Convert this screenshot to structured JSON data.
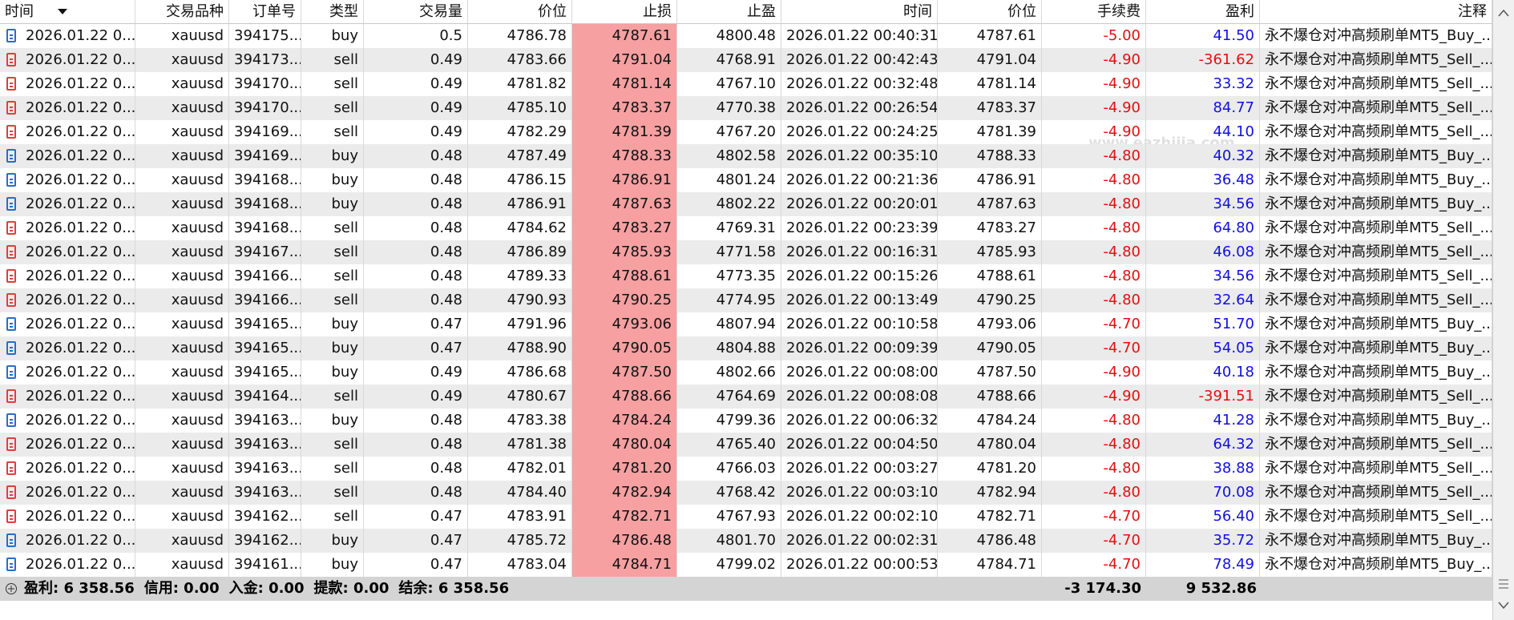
{
  "table": {
    "columns": [
      "时间",
      "交易品种",
      "订单号",
      "类型",
      "交易量",
      "价位",
      "止损",
      "止盈",
      "时间",
      "价位",
      "手续费",
      "盈利",
      "注释"
    ],
    "rows": [
      [
        "2026.01.22 0...",
        "xauusd",
        "394175...",
        "buy",
        "0.5",
        "4786.78",
        "4787.61",
        "4800.48",
        "2026.01.22 00:40:31",
        "4787.61",
        "-5.00",
        "41.50",
        "永不爆仓对冲高频刷单MT5_Buy_..."
      ],
      [
        "2026.01.22 0...",
        "xauusd",
        "394173...",
        "sell",
        "0.49",
        "4783.66",
        "4791.04",
        "4768.91",
        "2026.01.22 00:42:43",
        "4791.04",
        "-4.90",
        "-361.62",
        "永不爆仓对冲高频刷单MT5_Sell_..."
      ],
      [
        "2026.01.22 0...",
        "xauusd",
        "394170...",
        "sell",
        "0.49",
        "4781.82",
        "4781.14",
        "4767.10",
        "2026.01.22 00:32:48",
        "4781.14",
        "-4.90",
        "33.32",
        "永不爆仓对冲高频刷单MT5_Sell_..."
      ],
      [
        "2026.01.22 0...",
        "xauusd",
        "394170...",
        "sell",
        "0.49",
        "4785.10",
        "4783.37",
        "4770.38",
        "2026.01.22 00:26:54",
        "4783.37",
        "-4.90",
        "84.77",
        "永不爆仓对冲高频刷单MT5_Sell_..."
      ],
      [
        "2026.01.22 0...",
        "xauusd",
        "394169...",
        "sell",
        "0.49",
        "4782.29",
        "4781.39",
        "4767.20",
        "2026.01.22 00:24:25",
        "4781.39",
        "-4.90",
        "44.10",
        "永不爆仓对冲高频刷单MT5_Sell_..."
      ],
      [
        "2026.01.22 0...",
        "xauusd",
        "394169...",
        "buy",
        "0.48",
        "4787.49",
        "4788.33",
        "4802.58",
        "2026.01.22 00:35:10",
        "4788.33",
        "-4.80",
        "40.32",
        "永不爆仓对冲高频刷单MT5_Buy_..."
      ],
      [
        "2026.01.22 0...",
        "xauusd",
        "394168...",
        "buy",
        "0.48",
        "4786.15",
        "4786.91",
        "4801.24",
        "2026.01.22 00:21:36",
        "4786.91",
        "-4.80",
        "36.48",
        "永不爆仓对冲高频刷单MT5_Buy_..."
      ],
      [
        "2026.01.22 0...",
        "xauusd",
        "394168...",
        "buy",
        "0.48",
        "4786.91",
        "4787.63",
        "4802.22",
        "2026.01.22 00:20:01",
        "4787.63",
        "-4.80",
        "34.56",
        "永不爆仓对冲高频刷单MT5_Buy_..."
      ],
      [
        "2026.01.22 0...",
        "xauusd",
        "394168...",
        "sell",
        "0.48",
        "4784.62",
        "4783.27",
        "4769.31",
        "2026.01.22 00:23:39",
        "4783.27",
        "-4.80",
        "64.80",
        "永不爆仓对冲高频刷单MT5_Sell_..."
      ],
      [
        "2026.01.22 0...",
        "xauusd",
        "394167...",
        "sell",
        "0.48",
        "4786.89",
        "4785.93",
        "4771.58",
        "2026.01.22 00:16:31",
        "4785.93",
        "-4.80",
        "46.08",
        "永不爆仓对冲高频刷单MT5_Sell_..."
      ],
      [
        "2026.01.22 0...",
        "xauusd",
        "394166...",
        "sell",
        "0.48",
        "4789.33",
        "4788.61",
        "4773.35",
        "2026.01.22 00:15:26",
        "4788.61",
        "-4.80",
        "34.56",
        "永不爆仓对冲高频刷单MT5_Sell_..."
      ],
      [
        "2026.01.22 0...",
        "xauusd",
        "394166...",
        "sell",
        "0.48",
        "4790.93",
        "4790.25",
        "4774.95",
        "2026.01.22 00:13:49",
        "4790.25",
        "-4.80",
        "32.64",
        "永不爆仓对冲高频刷单MT5_Sell_..."
      ],
      [
        "2026.01.22 0...",
        "xauusd",
        "394165...",
        "buy",
        "0.47",
        "4791.96",
        "4793.06",
        "4807.94",
        "2026.01.22 00:10:58",
        "4793.06",
        "-4.70",
        "51.70",
        "永不爆仓对冲高频刷单MT5_Buy_..."
      ],
      [
        "2026.01.22 0...",
        "xauusd",
        "394165...",
        "buy",
        "0.47",
        "4788.90",
        "4790.05",
        "4804.88",
        "2026.01.22 00:09:39",
        "4790.05",
        "-4.70",
        "54.05",
        "永不爆仓对冲高频刷单MT5_Buy_..."
      ],
      [
        "2026.01.22 0...",
        "xauusd",
        "394165...",
        "buy",
        "0.49",
        "4786.68",
        "4787.50",
        "4802.66",
        "2026.01.22 00:08:00",
        "4787.50",
        "-4.90",
        "40.18",
        "永不爆仓对冲高频刷单MT5_Buy_..."
      ],
      [
        "2026.01.22 0...",
        "xauusd",
        "394164...",
        "sell",
        "0.49",
        "4780.67",
        "4788.66",
        "4764.69",
        "2026.01.22 00:08:08",
        "4788.66",
        "-4.90",
        "-391.51",
        "永不爆仓对冲高频刷单MT5_Sell_..."
      ],
      [
        "2026.01.22 0...",
        "xauusd",
        "394163...",
        "buy",
        "0.48",
        "4783.38",
        "4784.24",
        "4799.36",
        "2026.01.22 00:06:32",
        "4784.24",
        "-4.80",
        "41.28",
        "永不爆仓对冲高频刷单MT5_Buy_..."
      ],
      [
        "2026.01.22 0...",
        "xauusd",
        "394163...",
        "sell",
        "0.48",
        "4781.38",
        "4780.04",
        "4765.40",
        "2026.01.22 00:04:50",
        "4780.04",
        "-4.80",
        "64.32",
        "永不爆仓对冲高频刷单MT5_Sell_..."
      ],
      [
        "2026.01.22 0...",
        "xauusd",
        "394163...",
        "sell",
        "0.48",
        "4782.01",
        "4781.20",
        "4766.03",
        "2026.01.22 00:03:27",
        "4781.20",
        "-4.80",
        "38.88",
        "永不爆仓对冲高频刷单MT5_Sell_..."
      ],
      [
        "2026.01.22 0...",
        "xauusd",
        "394163...",
        "sell",
        "0.48",
        "4784.40",
        "4782.94",
        "4768.42",
        "2026.01.22 00:03:10",
        "4782.94",
        "-4.80",
        "70.08",
        "永不爆仓对冲高频刷单MT5_Sell_..."
      ],
      [
        "2026.01.22 0...",
        "xauusd",
        "394162...",
        "sell",
        "0.47",
        "4783.91",
        "4782.71",
        "4767.93",
        "2026.01.22 00:02:10",
        "4782.71",
        "-4.70",
        "56.40",
        "永不爆仓对冲高频刷单MT5_Sell_..."
      ],
      [
        "2026.01.22 0...",
        "xauusd",
        "394162...",
        "buy",
        "0.47",
        "4785.72",
        "4786.48",
        "4801.70",
        "2026.01.22 00:02:31",
        "4786.48",
        "-4.70",
        "35.72",
        "永不爆仓对冲高频刷单MT5_Buy_..."
      ],
      [
        "2026.01.22 0...",
        "xauusd",
        "394161...",
        "buy",
        "0.47",
        "4783.04",
        "4784.71",
        "4799.02",
        "2026.01.22 00:00:53",
        "4784.71",
        "-4.70",
        "78.49",
        "永不爆仓对冲高频刷单MT5_Buy_..."
      ]
    ]
  },
  "footer": {
    "summary": [
      "盈利: 6 358.56",
      "信用: 0.00",
      "入金: 0.00",
      "提款: 0.00",
      "结余: 6 358.56"
    ],
    "commission_total": "-3 174.30",
    "profit_total": "9 532.86"
  },
  "watermark": "www.eazhijia.com"
}
